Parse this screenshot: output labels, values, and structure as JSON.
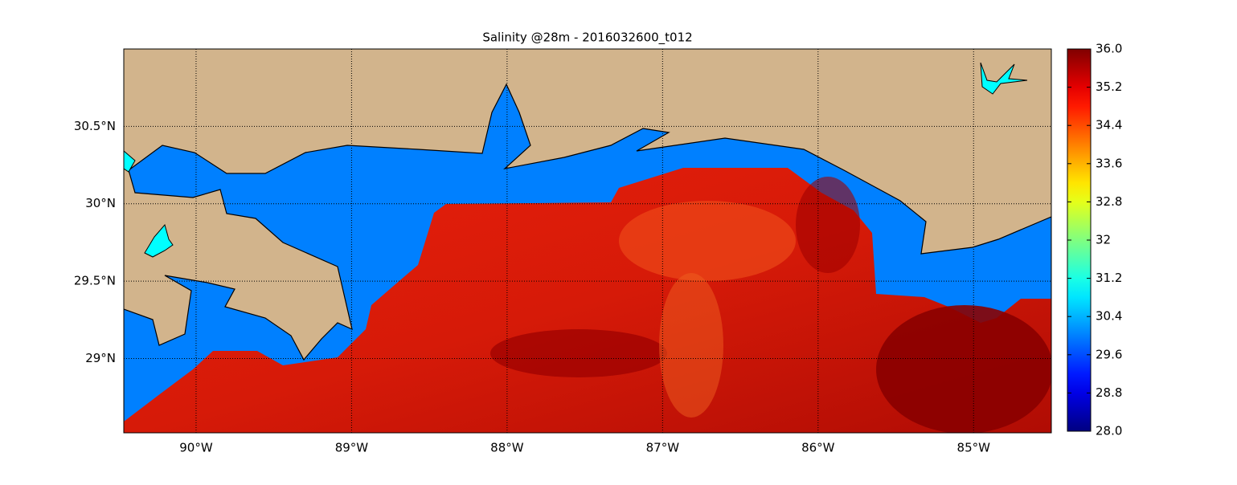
{
  "chart_data": {
    "type": "heatmap",
    "title": "Salinity @28m - 2016032600_t012",
    "xlim": [
      -90.465,
      -84.5
    ],
    "ylim": [
      28.52,
      31.0
    ],
    "xticks": [
      {
        "value": -90,
        "label": "90°W"
      },
      {
        "value": -89,
        "label": "89°W"
      },
      {
        "value": -88,
        "label": "88°W"
      },
      {
        "value": -87,
        "label": "87°W"
      },
      {
        "value": -86,
        "label": "86°W"
      },
      {
        "value": -85,
        "label": "85°W"
      }
    ],
    "yticks": [
      {
        "value": 29,
        "label": "29°N"
      },
      {
        "value": 29.5,
        "label": "29.5°N"
      },
      {
        "value": 30,
        "label": "30°N"
      },
      {
        "value": 30.5,
        "label": "30.5°N"
      }
    ],
    "grid": true,
    "colormap": "jet",
    "colorbar_lim": [
      28,
      36
    ],
    "colorbar_ticks": [
      {
        "value": 28,
        "label": "28.0"
      },
      28.8,
      29.6,
      30.4,
      31.2,
      32,
      32.8,
      33.6,
      34.4,
      35.2,
      {
        "value": 36,
        "label": "36.0"
      }
    ]
  }
}
